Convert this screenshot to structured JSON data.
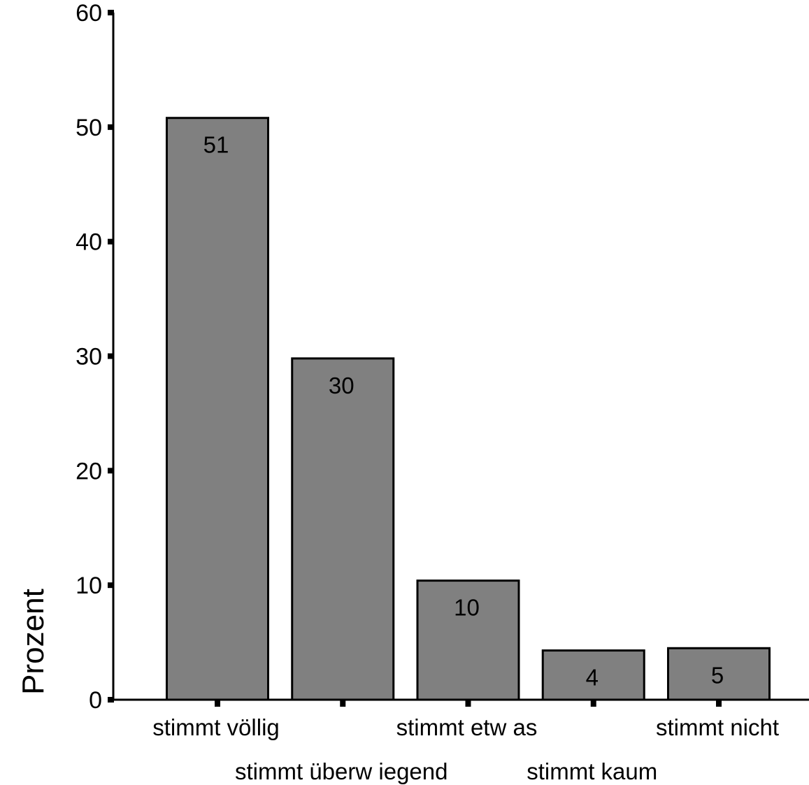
{
  "chart_data": {
    "type": "bar",
    "title": "",
    "xlabel": "",
    "ylabel": "Prozent",
    "ylim": [
      0,
      60
    ],
    "yticks": [
      0,
      10,
      20,
      30,
      40,
      50,
      60
    ],
    "grid": false,
    "categories": [
      "stimmt völlig",
      "stimmt überw iegend",
      "stimmt etw as",
      "stimmt kaum",
      "stimmt nicht"
    ],
    "values": [
      50.8,
      29.8,
      10.4,
      4.3,
      4.5
    ],
    "data_labels": [
      "51",
      "30",
      "10",
      "4",
      "5"
    ],
    "bar_color": "#808080"
  }
}
